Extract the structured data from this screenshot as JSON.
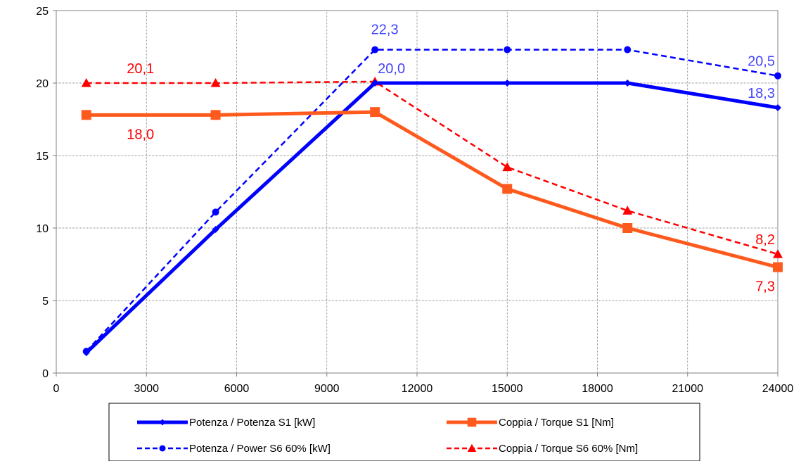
{
  "chart_data": {
    "type": "line",
    "title": "",
    "xlabel": "",
    "ylabel": "",
    "xlim": [
      0,
      24000
    ],
    "ylim": [
      0,
      25
    ],
    "x_ticks": [
      "0",
      "3000",
      "6000",
      "9000",
      "12000",
      "15000",
      "18000",
      "21000",
      "24000"
    ],
    "y_ticks": [
      "0",
      "5",
      "10",
      "15",
      "20",
      "25"
    ],
    "grid": true,
    "legend_position": "bottom",
    "series": [
      {
        "name": "Potenza / Potenza S1 [kW]",
        "color": "#0000ff",
        "line": "solid",
        "marker": "diamond",
        "x": [
          1000,
          5300,
          10600,
          15000,
          19000,
          24000
        ],
        "values": [
          1.4,
          9.9,
          20.0,
          20.0,
          20.0,
          18.3
        ]
      },
      {
        "name": "Coppia / Torque S1 [Nm]",
        "color": "#ff5a1e",
        "line": "solid",
        "marker": "square",
        "x": [
          1000,
          5300,
          10600,
          15000,
          19000,
          24000
        ],
        "values": [
          17.8,
          17.8,
          18.0,
          12.7,
          10.0,
          7.3
        ]
      },
      {
        "name": "Potenza / Power S6 60% [kW]",
        "color": "#0000ff",
        "line": "dashed",
        "marker": "circle",
        "x": [
          1000,
          5300,
          10600,
          15000,
          19000,
          24000
        ],
        "values": [
          1.5,
          11.1,
          22.3,
          22.3,
          22.3,
          20.5
        ]
      },
      {
        "name": "Coppia / Torque S6 60% [Nm]",
        "color": "#ff0000",
        "line": "dashed",
        "marker": "triangle",
        "x": [
          1000,
          5300,
          10600,
          15000,
          19000,
          24000
        ],
        "values": [
          20.0,
          20.0,
          20.1,
          14.2,
          11.2,
          8.2
        ]
      }
    ],
    "annotations": [
      {
        "text": "22,3",
        "color": "#4444ff",
        "x": 10600,
        "y": 22.3,
        "anchor": "right-above"
      },
      {
        "text": "20,0",
        "color": "#4444ff",
        "x": 10600,
        "y": 20.0,
        "anchor": "left-above"
      },
      {
        "text": "20,5",
        "color": "#4444ff",
        "x": 24000,
        "y": 20.5,
        "anchor": "left-above"
      },
      {
        "text": "18,3",
        "color": "#4444ff",
        "x": 24000,
        "y": 18.3,
        "anchor": "left-above"
      },
      {
        "text": "20,1",
        "color": "#ff0000",
        "x": 5300,
        "y": 20.0,
        "anchor": "far-left-above"
      },
      {
        "text": "18,0",
        "color": "#ff0000",
        "x": 5300,
        "y": 17.8,
        "anchor": "far-left-below"
      },
      {
        "text": "8,2",
        "color": "#ff0000",
        "x": 24000,
        "y": 8.2,
        "anchor": "left-above"
      },
      {
        "text": "7,3",
        "color": "#ff0000",
        "x": 24000,
        "y": 7.3,
        "anchor": "left-below"
      }
    ]
  }
}
